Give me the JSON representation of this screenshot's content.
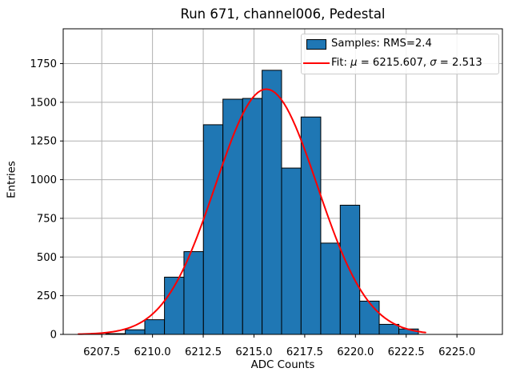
{
  "chart_data": {
    "type": "histogram",
    "title": "Run 671, channel006, Pedestal",
    "xlabel": "ADC Counts",
    "ylabel": "Entries",
    "xlim": [
      6205.6,
      6227.24
    ],
    "ylim": [
      0,
      1975
    ],
    "grid": true,
    "legend_position": "upper right",
    "x_ticks": [
      6207.5,
      6210.0,
      6212.5,
      6215.0,
      6217.5,
      6220.0,
      6222.5,
      6225.0
    ],
    "x_tick_labels": [
      "6207.5",
      "6210.0",
      "6212.5",
      "6215.0",
      "6217.5",
      "6220.0",
      "6222.5",
      "6225.0"
    ],
    "y_ticks": [
      0,
      250,
      500,
      750,
      1000,
      1250,
      1500,
      1750
    ],
    "y_tick_labels": [
      "0",
      "250",
      "500",
      "750",
      "1000",
      "1250",
      "1500",
      "1750"
    ],
    "bins": {
      "edges": [
        6207.7,
        6208.66,
        6209.62,
        6210.59,
        6211.55,
        6212.51,
        6213.47,
        6214.44,
        6215.4,
        6216.36,
        6217.32,
        6218.29,
        6219.25,
        6220.21,
        6221.17,
        6222.14,
        6223.1
      ],
      "counts": [
        5,
        30,
        95,
        370,
        535,
        1355,
        1520,
        1525,
        1707,
        1075,
        1405,
        590,
        835,
        215,
        65,
        35
      ]
    },
    "fit": {
      "mu": 6215.607,
      "sigma": 2.513,
      "amplitude": 1585,
      "x_start": 6206.35,
      "x_end": 6223.45
    },
    "colors": {
      "bar_fill": "#1f77b4",
      "bar_edge": "#000000",
      "fit_line": "#ff0000",
      "grid": "#b0b0b0",
      "spine": "#000000",
      "legend_border": "#cccccc"
    },
    "legend": {
      "samples_label": "Samples: RMS=2.4",
      "fit_label_pre": "Fit: ",
      "fit_label_mu": "μ",
      "fit_label_mid": " = 6215.607, ",
      "fit_label_sigma": "σ",
      "fit_label_end": " = 2.513"
    }
  }
}
